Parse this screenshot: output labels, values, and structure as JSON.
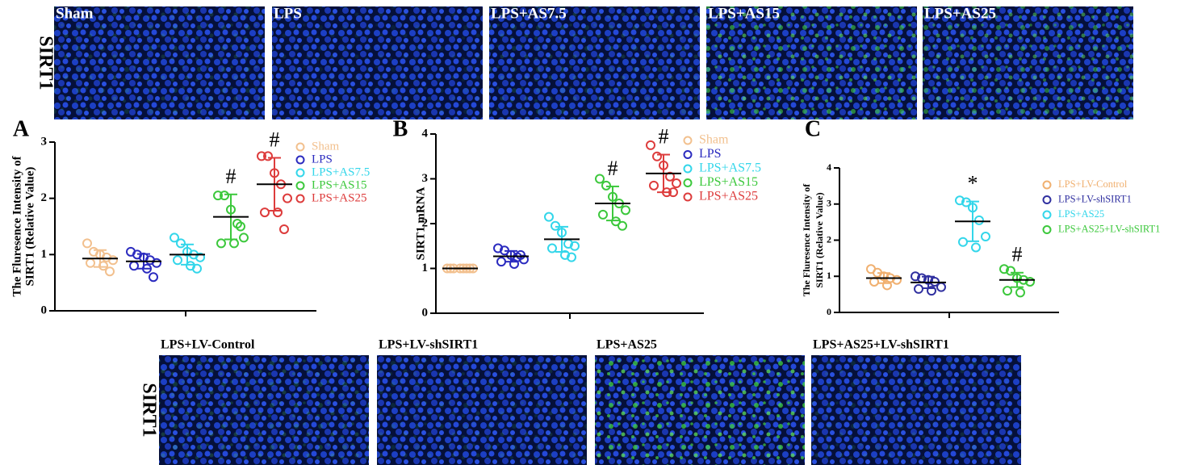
{
  "images": {
    "rows": [
      {
        "side_label": "SIRT1",
        "panels": [
          "Sham",
          "LPS",
          "LPS+AS7.5",
          "LPS+AS15",
          "LPS+AS25"
        ]
      },
      {
        "side_label": "SIRT1",
        "panels": [
          "LPS+LV-Control",
          "LPS+LV-shSIRT1",
          "LPS+AS25",
          "LPS+AS25+LV-shSIRT1"
        ]
      }
    ]
  },
  "chart_data": [
    {
      "type": "dotplot",
      "panel_label": "A",
      "ylabel": [
        "The Fluresence Intensity of",
        "SIRT1 (Relative Value)"
      ],
      "ylim": [
        0,
        3
      ],
      "yticks": [
        0,
        1,
        2,
        3
      ],
      "series": [
        {
          "name": "Sham",
          "color": "#f2c08e",
          "values": [
            1.2,
            1.05,
            1.0,
            0.95,
            0.9,
            0.85,
            0.8,
            0.7
          ],
          "mean": 0.93,
          "sd": 0.15
        },
        {
          "name": "LPS",
          "color": "#2b2bbf",
          "values": [
            1.05,
            1.0,
            0.95,
            0.9,
            0.85,
            0.8,
            0.75,
            0.6
          ],
          "mean": 0.88,
          "sd": 0.13
        },
        {
          "name": "LPS+AS7.5",
          "color": "#33d6ea",
          "values": [
            1.3,
            1.2,
            1.05,
            1.0,
            0.95,
            0.9,
            0.8,
            0.75
          ],
          "mean": 1.0,
          "sd": 0.18
        },
        {
          "name": "LPS+AS15",
          "color": "#3cc83c",
          "values": [
            2.05,
            2.05,
            1.8,
            1.55,
            1.3,
            1.2,
            1.2,
            1.5
          ],
          "mean": 1.67,
          "sd": 0.4,
          "annotation": "#"
        },
        {
          "name": "LPS+AS25",
          "color": "#dd3c3c",
          "values": [
            2.75,
            2.75,
            2.45,
            2.25,
            2.0,
            1.75,
            1.75,
            1.45
          ],
          "mean": 2.25,
          "sd": 0.47,
          "annotation": "#"
        }
      ]
    },
    {
      "type": "dotplot",
      "panel_label": "B",
      "ylabel": [
        "SIRT1 mRNA"
      ],
      "ylim": [
        0,
        4
      ],
      "yticks": [
        0,
        1,
        2,
        3,
        4
      ],
      "series": [
        {
          "name": "Sham",
          "color": "#f2c08e",
          "values": [
            1.0,
            1.0,
            1.0,
            1.0,
            1.0,
            1.0,
            1.0,
            1.0
          ],
          "mean": 1.0,
          "sd": 0.01
        },
        {
          "name": "LPS",
          "color": "#2b2bbf",
          "values": [
            1.45,
            1.4,
            1.3,
            1.25,
            1.2,
            1.15,
            1.1,
            1.3
          ],
          "mean": 1.27,
          "sd": 0.12
        },
        {
          "name": "LPS+AS7.5",
          "color": "#33d6ea",
          "values": [
            2.15,
            1.95,
            1.8,
            1.55,
            1.5,
            1.45,
            1.3,
            1.25
          ],
          "mean": 1.65,
          "sd": 0.28
        },
        {
          "name": "LPS+AS15",
          "color": "#3cc83c",
          "values": [
            3.0,
            2.85,
            2.6,
            2.45,
            2.3,
            2.2,
            2.05,
            1.95
          ],
          "mean": 2.45,
          "sd": 0.38,
          "annotation": "#"
        },
        {
          "name": "LPS+AS25",
          "color": "#dd3c3c",
          "values": [
            3.75,
            3.5,
            3.3,
            3.05,
            2.9,
            2.85,
            2.7,
            2.7
          ],
          "mean": 3.12,
          "sd": 0.42,
          "annotation": "#"
        }
      ]
    },
    {
      "type": "dotplot",
      "panel_label": "C",
      "ylabel": [
        "The Fluresence Intensity of",
        "SIRT1 (Relative Value)"
      ],
      "ylim": [
        0,
        4
      ],
      "yticks": [
        0,
        1,
        2,
        3,
        4
      ],
      "series": [
        {
          "name": "LPS+LV-Control",
          "color": "#f0b070",
          "values": [
            1.2,
            1.1,
            1.0,
            0.95,
            0.9,
            0.85,
            0.75
          ],
          "mean": 0.95,
          "sd": 0.14
        },
        {
          "name": "LPS+LV-shSIRT1",
          "color": "#3030a0",
          "values": [
            1.0,
            0.95,
            0.9,
            0.85,
            0.7,
            0.65,
            0.6
          ],
          "mean": 0.83,
          "sd": 0.16
        },
        {
          "name": "LPS+AS25",
          "color": "#33d6ea",
          "values": [
            3.1,
            3.05,
            2.9,
            2.55,
            2.1,
            1.95,
            1.8
          ],
          "mean": 2.52,
          "sd": 0.55,
          "annotation": "*"
        },
        {
          "name": "LPS+AS25+LV-shSIRT1",
          "color": "#3cc83c",
          "values": [
            1.2,
            1.15,
            0.95,
            0.9,
            0.85,
            0.6,
            0.55
          ],
          "mean": 0.9,
          "sd": 0.2,
          "annotation": "#"
        }
      ]
    }
  ]
}
